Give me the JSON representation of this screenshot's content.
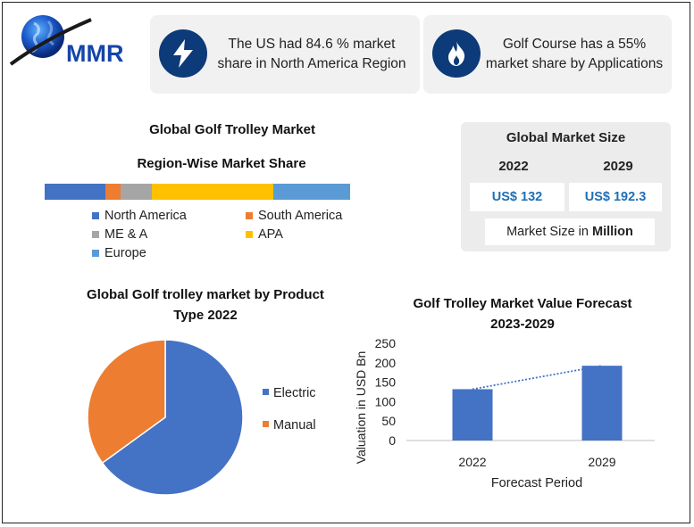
{
  "brand": {
    "name": "MMR"
  },
  "cards": {
    "us_share": "The US had 84.6 % market share in North America Region",
    "golf_course": "Golf Course has a 55% market share by Applications"
  },
  "region": {
    "title": "Global Golf Trolley Market",
    "subtitle": "Region-Wise Market Share"
  },
  "market_size": {
    "title": "Global Market Size",
    "year1": "2022",
    "year2": "2029",
    "value1": "US$ 132",
    "value2": "US$ 192.3",
    "footer_prefix": "Market Size in ",
    "footer_bold": "Million"
  },
  "pie_title_line1": "Global Golf trolley market by Product",
  "pie_title_line2": "Type 2022",
  "forecast_title_line1": "Golf Trolley Market Value Forecast",
  "forecast_title_line2": "2023-2029",
  "chart_data": [
    {
      "type": "bar",
      "orientation": "horizontal-stacked",
      "title": "Region-Wise Market Share",
      "series": [
        {
          "name": "North America",
          "value": 20,
          "color": "#4472c4"
        },
        {
          "name": "South America",
          "value": 5,
          "color": "#ed7d31"
        },
        {
          "name": "ME & A",
          "value": 10,
          "color": "#a5a5a5"
        },
        {
          "name": "APA",
          "value": 40,
          "color": "#ffc000"
        },
        {
          "name": "Europe",
          "value": 25,
          "color": "#5b9bd5"
        }
      ],
      "legend": [
        {
          "name": "North America",
          "color": "#4472c4"
        },
        {
          "name": "South America",
          "color": "#ed7d31"
        },
        {
          "name": "ME & A",
          "color": "#a5a5a5"
        },
        {
          "name": "APA",
          "color": "#ffc000"
        },
        {
          "name": "Europe",
          "color": "#5b9bd5"
        }
      ],
      "legend_position": "bottom"
    },
    {
      "type": "pie",
      "title": "Global Golf trolley market by Product Type 2022",
      "slices": [
        {
          "name": "Electric",
          "value": 65,
          "color": "#4472c4"
        },
        {
          "name": "Manual",
          "value": 35,
          "color": "#ed7d31"
        }
      ],
      "legend_position": "right"
    },
    {
      "type": "bar",
      "title": "Golf Trolley Market Value Forecast 2023-2029",
      "categories": [
        "2022",
        "2029"
      ],
      "values": [
        132,
        192.3
      ],
      "bar_color": "#4472c4",
      "trendline": true,
      "trendline_color": "#4472c4",
      "xlabel": "Forecast Period",
      "ylabel": "Valuation in USD Bn",
      "ylim": [
        0,
        250
      ],
      "yticks": [
        0,
        50,
        100,
        150,
        200,
        250
      ],
      "grid": false
    }
  ]
}
